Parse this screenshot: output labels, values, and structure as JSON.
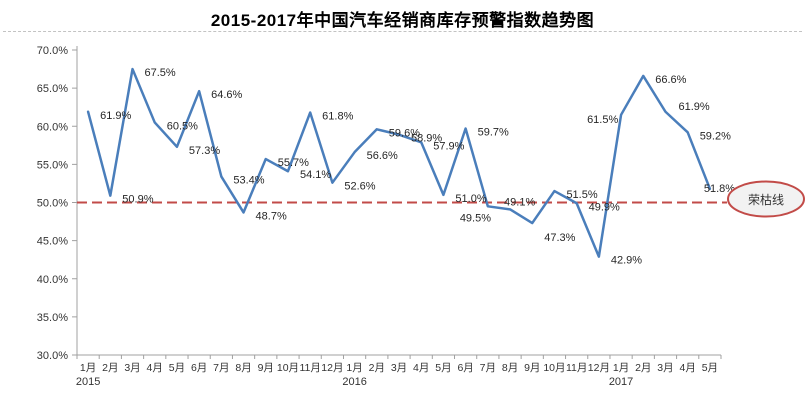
{
  "title": "2015-2017年中国汽车经销商库存预警指数趋势图",
  "chart_data": {
    "type": "line",
    "title": "2015-2017年中国汽车经销商库存预警指数趋势图",
    "grid": false,
    "legend": "none",
    "ylim": [
      30,
      70
    ],
    "y_tick_labels": [
      "70.0%",
      "65.0%",
      "60.0%",
      "55.0%",
      "50.0%",
      "45.0%",
      "40.0%",
      "35.0%",
      "30.0%"
    ],
    "x_months": [
      "1月",
      "2月",
      "3月",
      "4月",
      "5月",
      "6月",
      "7月",
      "8月",
      "9月",
      "10月",
      "11月",
      "12月",
      "1月",
      "2月",
      "3月",
      "4月",
      "5月",
      "6月",
      "7月",
      "8月",
      "9月",
      "10月",
      "11月",
      "12月",
      "1月",
      "2月",
      "3月",
      "4月",
      "5月"
    ],
    "year_markers": [
      {
        "index": 0,
        "label": "2015"
      },
      {
        "index": 12,
        "label": "2016"
      },
      {
        "index": 24,
        "label": "2017"
      }
    ],
    "series": [
      {
        "color": "#4A7EBB",
        "values": [
          61.9,
          50.9,
          67.5,
          60.5,
          57.3,
          64.6,
          53.4,
          48.7,
          55.7,
          54.1,
          61.8,
          52.6,
          56.6,
          59.6,
          58.9,
          57.9,
          51.0,
          59.7,
          49.5,
          49.1,
          47.3,
          51.5,
          49.9,
          42.9,
          61.5,
          66.6,
          61.9,
          59.2,
          51.8
        ],
        "labels": [
          "61.9%",
          "50.9%",
          "67.5%",
          "60.5%",
          "57.3%",
          "64.6%",
          "53.4%",
          "48.7%",
          "55.7%",
          "54.1%",
          "61.8%",
          "52.6%",
          "56.6%",
          "59.6%",
          "58.9%",
          "57.9%",
          "51.0%",
          "59.7%",
          "49.5%",
          "49.1%",
          "47.3%",
          "51.5%",
          "49.9%",
          "42.9%",
          "61.5%",
          "66.6%",
          "61.9%",
          "59.2%",
          "51.8%"
        ]
      }
    ],
    "label_offsets": {
      "18": [
        -28,
        11
      ],
      "19": [
        -6,
        -8
      ],
      "20": [
        12,
        14
      ],
      "24": [
        -34,
        4
      ],
      "26": [
        13,
        -6
      ],
      "28": [
        -6,
        -1
      ]
    },
    "reference_line": {
      "value": 50,
      "label": "荣枯线",
      "line_color": "#C24B48",
      "badge_fill": "#F2F2F2",
      "style": "dashed"
    },
    "axis_color": "#A0A0A0",
    "text_color": "#333333",
    "data_label_color": "#262626"
  }
}
